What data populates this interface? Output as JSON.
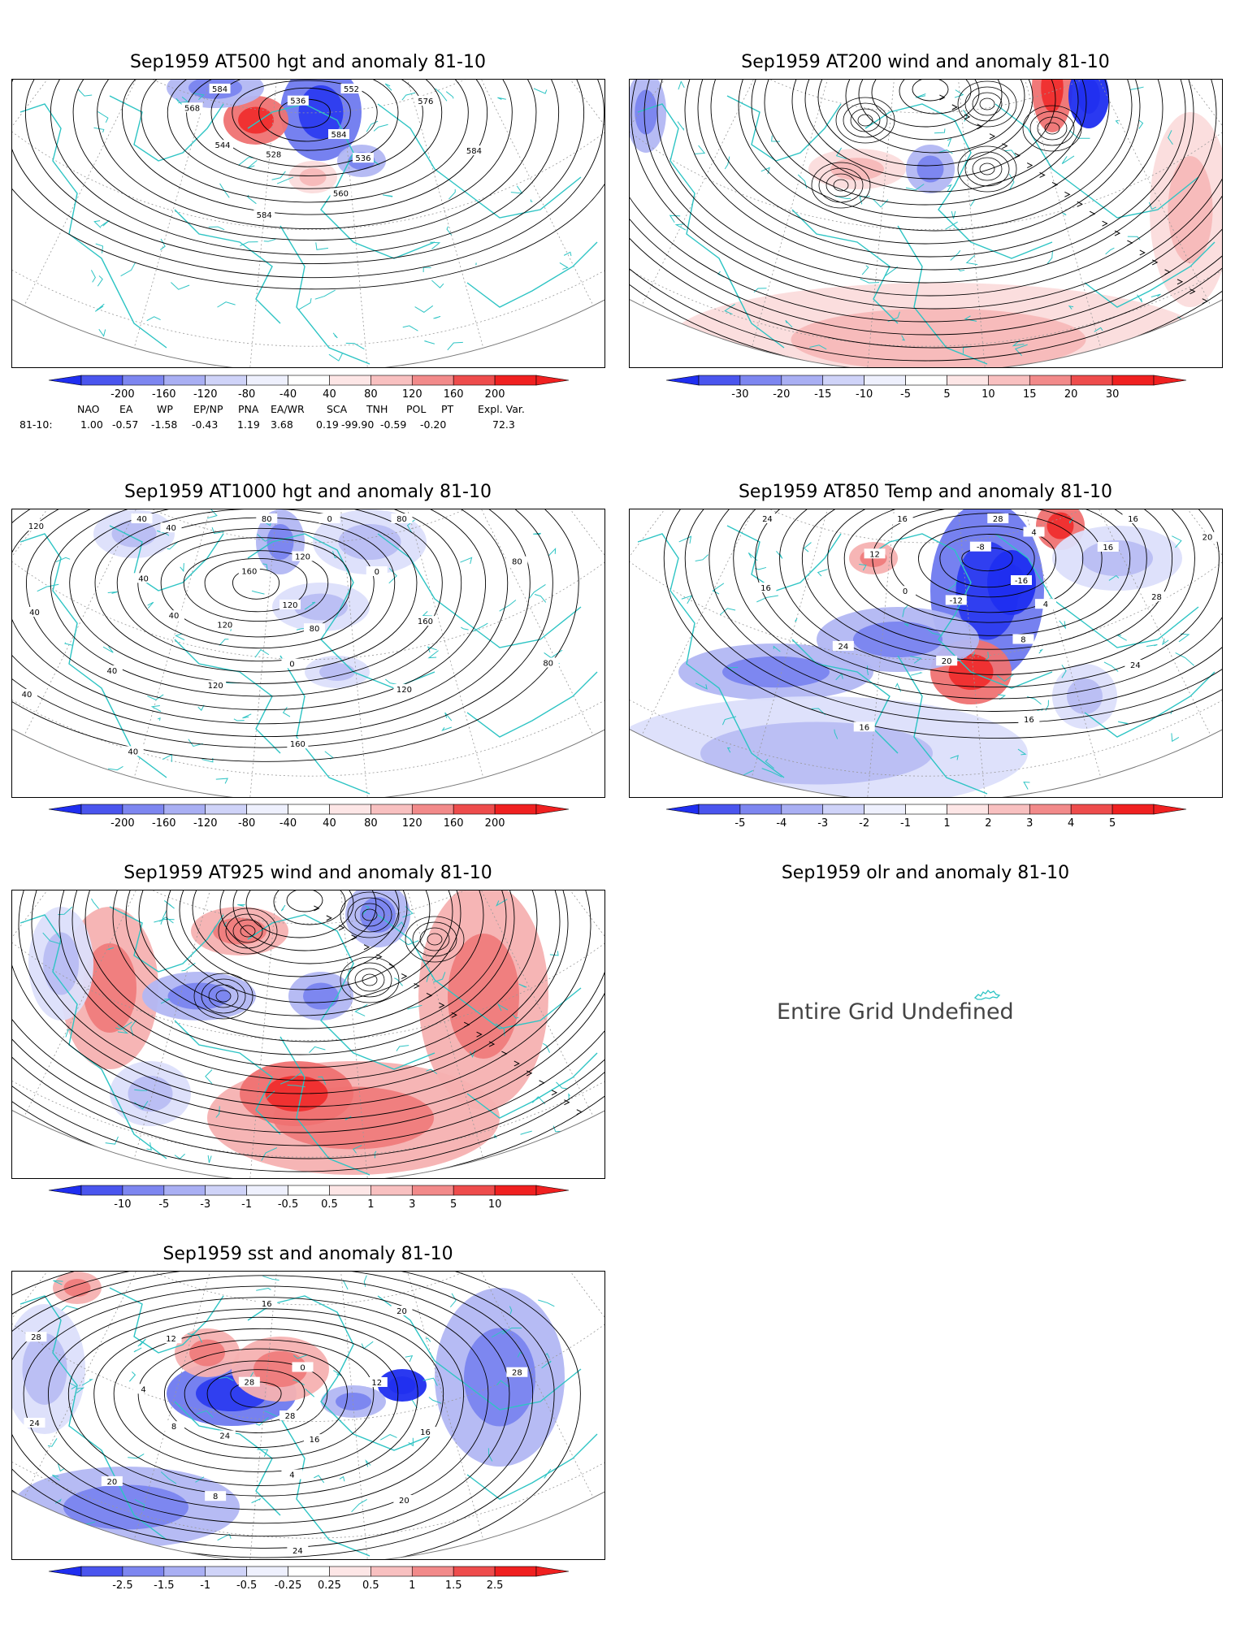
{
  "colors": {
    "land_outline": "#2ec4c4",
    "contour": "#000000",
    "neg_strong": "#1f2ef0",
    "neg_mid": "#6f7aef",
    "neg_light": "#b2b7f3",
    "neg_faint": "#dcdffb",
    "pos_faint": "#fbdcdc",
    "pos_light": "#f6b1b1",
    "pos_mid": "#ef7272",
    "pos_strong": "#f02020"
  },
  "panels": [
    {
      "id": "at500",
      "title": "Sep1959 AT500 hgt and anomaly 81-10",
      "contour_labels": [
        "584",
        "528",
        "536",
        "536",
        "544",
        "552",
        "560",
        "568",
        "576",
        "584",
        "584",
        "584"
      ],
      "colorbar": [
        "-200",
        "-160",
        "-120",
        "-80",
        "-40",
        "40",
        "80",
        "120",
        "160",
        "200"
      ]
    },
    {
      "id": "at200",
      "title": "Sep1959 AT200 wind and anomaly 81-10",
      "contour_labels": [],
      "colorbar": [
        "-30",
        "-20",
        "-15",
        "-10",
        "-5",
        "5",
        "10",
        "15",
        "20",
        "30"
      ]
    },
    {
      "id": "at1000",
      "title": "Sep1959 AT1000 hgt and anomaly 81-10",
      "contour_labels": [
        "120",
        "120",
        "160",
        "80",
        "40",
        "120",
        "0",
        "40",
        "0",
        "120",
        "40",
        "160",
        "40",
        "80",
        "120",
        "40",
        "80",
        "160",
        "120",
        "80",
        "40",
        "40",
        "80",
        "40",
        "0"
      ],
      "colorbar": [
        "-200",
        "-160",
        "-120",
        "-80",
        "-40",
        "40",
        "80",
        "120",
        "160",
        "200"
      ]
    },
    {
      "id": "at850",
      "title": "Sep1959 AT850 Temp and anomaly 81-10",
      "contour_labels": [
        "-16",
        "-12",
        "-8",
        "4",
        "0",
        "4",
        "8",
        "12",
        "16",
        "20",
        "16",
        "28",
        "24",
        "28",
        "24",
        "16",
        "16",
        "16",
        "24",
        "20",
        "16"
      ],
      "colorbar": [
        "-5",
        "-4",
        "-3",
        "-2",
        "-1",
        "1",
        "2",
        "3",
        "4",
        "5"
      ]
    },
    {
      "id": "at925",
      "title": "Sep1959 AT925 wind and anomaly 81-10",
      "contour_labels": [],
      "colorbar": [
        "-10",
        "-5",
        "-3",
        "-1",
        "-0.5",
        "0.5",
        "1",
        "3",
        "5",
        "10"
      ]
    },
    {
      "id": "olr",
      "title": "Sep1959 olr and anomaly 81-10",
      "undefined_text": "Entire Grid Undefined"
    },
    {
      "id": "sst",
      "title": "Sep1959 sst and anomaly 81-10",
      "contour_labels": [
        "28",
        "24",
        "28",
        "16",
        "8",
        "0",
        "4",
        "4",
        "12",
        "8",
        "12",
        "16",
        "20",
        "16",
        "20",
        "24",
        "20",
        "24",
        "28",
        "28"
      ],
      "colorbar": [
        "-2.5",
        "-1.5",
        "-1",
        "-0.5",
        "-0.25",
        "0.25",
        "0.5",
        "1",
        "1.5",
        "2.5"
      ]
    }
  ],
  "indices": {
    "row_label": "81-10:",
    "headers": [
      "NAO",
      "EA",
      "WP",
      "EP/NP",
      "PNA",
      "EA/WR",
      "SCA",
      "TNH",
      "POL",
      "PT",
      "Expl. Var."
    ],
    "values": [
      "1.00",
      "-0.57",
      "-1.58",
      "-0.43",
      "1.19",
      "3.68",
      "0.19",
      "-99.90",
      "-0.59",
      "-0.20",
      "72.3"
    ]
  }
}
